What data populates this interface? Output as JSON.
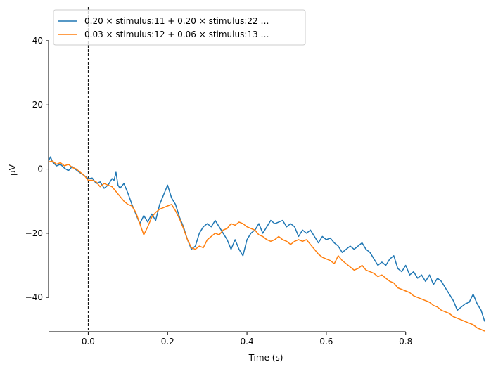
{
  "chart_data": {
    "type": "line",
    "title": "",
    "xlabel": "Time (s)",
    "ylabel": "µV",
    "xlim": [
      -0.1,
      0.999
    ],
    "ylim": [
      -50.7,
      50.5
    ],
    "x_ticks": [
      0.0,
      0.2,
      0.4,
      0.6,
      0.8
    ],
    "x_tick_labels": [
      "0.0",
      "0.2",
      "0.4",
      "0.6",
      "0.8"
    ],
    "y_ticks": [
      40,
      20,
      0,
      -20,
      -40
    ],
    "y_tick_labels": [
      "40",
      "20",
      "0",
      "−20",
      "−40"
    ],
    "x_spine_range": [
      -0.1,
      0.8
    ],
    "y_spine_range": [
      -40,
      40
    ],
    "zero_line": 0,
    "event_line_x": 0.0,
    "grid": false,
    "legend_position": "top-left",
    "series": [
      {
        "name": "0.20 × stimulus:11 + 0.20 × stimulus:22  …",
        "color": "#1f77b4",
        "points": [
          [
            -0.1,
            2.5
          ],
          [
            -0.095,
            3.8
          ],
          [
            -0.09,
            2.2
          ],
          [
            -0.08,
            1.0
          ],
          [
            -0.07,
            1.5
          ],
          [
            -0.06,
            0.3
          ],
          [
            -0.05,
            -0.5
          ],
          [
            -0.04,
            0.8
          ],
          [
            -0.03,
            -0.3
          ],
          [
            -0.02,
            -1.2
          ],
          [
            -0.01,
            -2.0
          ],
          [
            0.0,
            -3.0
          ],
          [
            0.01,
            -2.8
          ],
          [
            0.02,
            -4.5
          ],
          [
            0.03,
            -4.0
          ],
          [
            0.04,
            -6.0
          ],
          [
            0.05,
            -5.0
          ],
          [
            0.06,
            -3.0
          ],
          [
            0.065,
            -3.5
          ],
          [
            0.07,
            -1.0
          ],
          [
            0.075,
            -5.0
          ],
          [
            0.08,
            -6.0
          ],
          [
            0.09,
            -4.5
          ],
          [
            0.1,
            -7.5
          ],
          [
            0.11,
            -11.0
          ],
          [
            0.12,
            -14.0
          ],
          [
            0.13,
            -17.0
          ],
          [
            0.14,
            -14.5
          ],
          [
            0.15,
            -16.5
          ],
          [
            0.16,
            -14.0
          ],
          [
            0.17,
            -16.0
          ],
          [
            0.18,
            -11.0
          ],
          [
            0.19,
            -8.0
          ],
          [
            0.2,
            -5.0
          ],
          [
            0.21,
            -9.0
          ],
          [
            0.22,
            -11.0
          ],
          [
            0.23,
            -15.0
          ],
          [
            0.24,
            -18.0
          ],
          [
            0.25,
            -22.0
          ],
          [
            0.26,
            -25.0
          ],
          [
            0.27,
            -24.0
          ],
          [
            0.28,
            -20.0
          ],
          [
            0.29,
            -18.0
          ],
          [
            0.3,
            -17.0
          ],
          [
            0.31,
            -18.0
          ],
          [
            0.32,
            -16.0
          ],
          [
            0.33,
            -18.0
          ],
          [
            0.34,
            -20.0
          ],
          [
            0.35,
            -22.0
          ],
          [
            0.36,
            -25.0
          ],
          [
            0.37,
            -22.0
          ],
          [
            0.38,
            -25.0
          ],
          [
            0.39,
            -27.0
          ],
          [
            0.4,
            -22.0
          ],
          [
            0.41,
            -20.0
          ],
          [
            0.42,
            -19.0
          ],
          [
            0.43,
            -17.0
          ],
          [
            0.44,
            -20.0
          ],
          [
            0.45,
            -18.0
          ],
          [
            0.46,
            -16.0
          ],
          [
            0.47,
            -17.0
          ],
          [
            0.48,
            -16.5
          ],
          [
            0.49,
            -16.0
          ],
          [
            0.5,
            -18.0
          ],
          [
            0.51,
            -17.0
          ],
          [
            0.52,
            -18.0
          ],
          [
            0.53,
            -21.0
          ],
          [
            0.54,
            -19.0
          ],
          [
            0.55,
            -20.0
          ],
          [
            0.56,
            -19.0
          ],
          [
            0.57,
            -21.0
          ],
          [
            0.58,
            -23.0
          ],
          [
            0.59,
            -21.0
          ],
          [
            0.6,
            -22.0
          ],
          [
            0.61,
            -21.5
          ],
          [
            0.62,
            -23.0
          ],
          [
            0.63,
            -24.0
          ],
          [
            0.64,
            -26.0
          ],
          [
            0.65,
            -25.0
          ],
          [
            0.66,
            -24.0
          ],
          [
            0.67,
            -25.0
          ],
          [
            0.68,
            -24.0
          ],
          [
            0.69,
            -23.0
          ],
          [
            0.7,
            -25.0
          ],
          [
            0.71,
            -26.0
          ],
          [
            0.72,
            -28.0
          ],
          [
            0.73,
            -30.0
          ],
          [
            0.74,
            -29.0
          ],
          [
            0.75,
            -30.0
          ],
          [
            0.76,
            -28.0
          ],
          [
            0.77,
            -27.0
          ],
          [
            0.78,
            -31.0
          ],
          [
            0.79,
            -32.0
          ],
          [
            0.8,
            -30.0
          ],
          [
            0.81,
            -33.0
          ],
          [
            0.82,
            -32.0
          ],
          [
            0.83,
            -34.0
          ],
          [
            0.84,
            -33.0
          ],
          [
            0.85,
            -35.0
          ],
          [
            0.86,
            -33.0
          ],
          [
            0.87,
            -36.0
          ],
          [
            0.88,
            -34.0
          ],
          [
            0.89,
            -35.0
          ],
          [
            0.9,
            -37.0
          ],
          [
            0.91,
            -39.0
          ],
          [
            0.92,
            -41.0
          ],
          [
            0.93,
            -44.0
          ],
          [
            0.94,
            -43.0
          ],
          [
            0.95,
            -42.0
          ],
          [
            0.96,
            -41.5
          ],
          [
            0.97,
            -39.0
          ],
          [
            0.98,
            -42.0
          ],
          [
            0.99,
            -44.0
          ],
          [
            0.999,
            -47.5
          ]
        ]
      },
      {
        "name": "0.03 × stimulus:12 + 0.06 × stimulus:13  …",
        "color": "#ff7f0e",
        "points": [
          [
            -0.1,
            2.2
          ],
          [
            -0.09,
            2.5
          ],
          [
            -0.08,
            1.5
          ],
          [
            -0.07,
            2.0
          ],
          [
            -0.06,
            1.0
          ],
          [
            -0.05,
            1.5
          ],
          [
            -0.04,
            0.5
          ],
          [
            -0.03,
            0.0
          ],
          [
            -0.02,
            -1.0
          ],
          [
            -0.01,
            -2.0
          ],
          [
            0.0,
            -3.5
          ],
          [
            0.01,
            -3.5
          ],
          [
            0.02,
            -4.0
          ],
          [
            0.03,
            -5.5
          ],
          [
            0.04,
            -4.5
          ],
          [
            0.05,
            -5.0
          ],
          [
            0.06,
            -5.5
          ],
          [
            0.07,
            -7.0
          ],
          [
            0.08,
            -8.5
          ],
          [
            0.09,
            -10.0
          ],
          [
            0.1,
            -11.0
          ],
          [
            0.11,
            -11.5
          ],
          [
            0.12,
            -13.5
          ],
          [
            0.13,
            -17.0
          ],
          [
            0.14,
            -20.5
          ],
          [
            0.15,
            -18.0
          ],
          [
            0.16,
            -15.0
          ],
          [
            0.17,
            -13.5
          ],
          [
            0.18,
            -12.5
          ],
          [
            0.19,
            -12.0
          ],
          [
            0.2,
            -11.5
          ],
          [
            0.21,
            -11.0
          ],
          [
            0.22,
            -13.0
          ],
          [
            0.23,
            -15.5
          ],
          [
            0.24,
            -18.5
          ],
          [
            0.25,
            -22.0
          ],
          [
            0.26,
            -24.5
          ],
          [
            0.27,
            -25.0
          ],
          [
            0.28,
            -24.0
          ],
          [
            0.29,
            -24.5
          ],
          [
            0.3,
            -22.0
          ],
          [
            0.31,
            -21.0
          ],
          [
            0.32,
            -20.0
          ],
          [
            0.33,
            -20.5
          ],
          [
            0.34,
            -19.0
          ],
          [
            0.35,
            -18.5
          ],
          [
            0.36,
            -17.0
          ],
          [
            0.37,
            -17.5
          ],
          [
            0.38,
            -16.5
          ],
          [
            0.39,
            -17.0
          ],
          [
            0.4,
            -18.0
          ],
          [
            0.41,
            -18.5
          ],
          [
            0.42,
            -19.0
          ],
          [
            0.43,
            -20.5
          ],
          [
            0.44,
            -21.0
          ],
          [
            0.45,
            -22.0
          ],
          [
            0.46,
            -22.5
          ],
          [
            0.47,
            -22.0
          ],
          [
            0.48,
            -21.0
          ],
          [
            0.49,
            -22.0
          ],
          [
            0.5,
            -22.5
          ],
          [
            0.51,
            -23.5
          ],
          [
            0.52,
            -22.5
          ],
          [
            0.53,
            -22.0
          ],
          [
            0.54,
            -22.5
          ],
          [
            0.55,
            -22.0
          ],
          [
            0.56,
            -23.5
          ],
          [
            0.57,
            -25.0
          ],
          [
            0.58,
            -26.5
          ],
          [
            0.59,
            -27.5
          ],
          [
            0.6,
            -28.0
          ],
          [
            0.61,
            -28.5
          ],
          [
            0.62,
            -29.5
          ],
          [
            0.63,
            -27.0
          ],
          [
            0.64,
            -28.5
          ],
          [
            0.65,
            -29.5
          ],
          [
            0.66,
            -30.5
          ],
          [
            0.67,
            -31.5
          ],
          [
            0.68,
            -31.0
          ],
          [
            0.69,
            -30.0
          ],
          [
            0.7,
            -31.5
          ],
          [
            0.71,
            -32.0
          ],
          [
            0.72,
            -32.5
          ],
          [
            0.73,
            -33.5
          ],
          [
            0.74,
            -33.0
          ],
          [
            0.75,
            -34.0
          ],
          [
            0.76,
            -35.0
          ],
          [
            0.77,
            -35.5
          ],
          [
            0.78,
            -37.0
          ],
          [
            0.79,
            -37.5
          ],
          [
            0.8,
            -38.0
          ],
          [
            0.81,
            -38.5
          ],
          [
            0.82,
            -39.5
          ],
          [
            0.83,
            -40.0
          ],
          [
            0.84,
            -40.5
          ],
          [
            0.85,
            -41.0
          ],
          [
            0.86,
            -41.5
          ],
          [
            0.87,
            -42.5
          ],
          [
            0.88,
            -43.0
          ],
          [
            0.89,
            -44.0
          ],
          [
            0.9,
            -44.5
          ],
          [
            0.91,
            -45.0
          ],
          [
            0.92,
            -46.0
          ],
          [
            0.93,
            -46.5
          ],
          [
            0.94,
            -47.0
          ],
          [
            0.95,
            -47.5
          ],
          [
            0.96,
            -48.0
          ],
          [
            0.97,
            -48.5
          ],
          [
            0.98,
            -49.5
          ],
          [
            0.99,
            -50.0
          ],
          [
            0.999,
            -50.5
          ]
        ]
      }
    ]
  }
}
